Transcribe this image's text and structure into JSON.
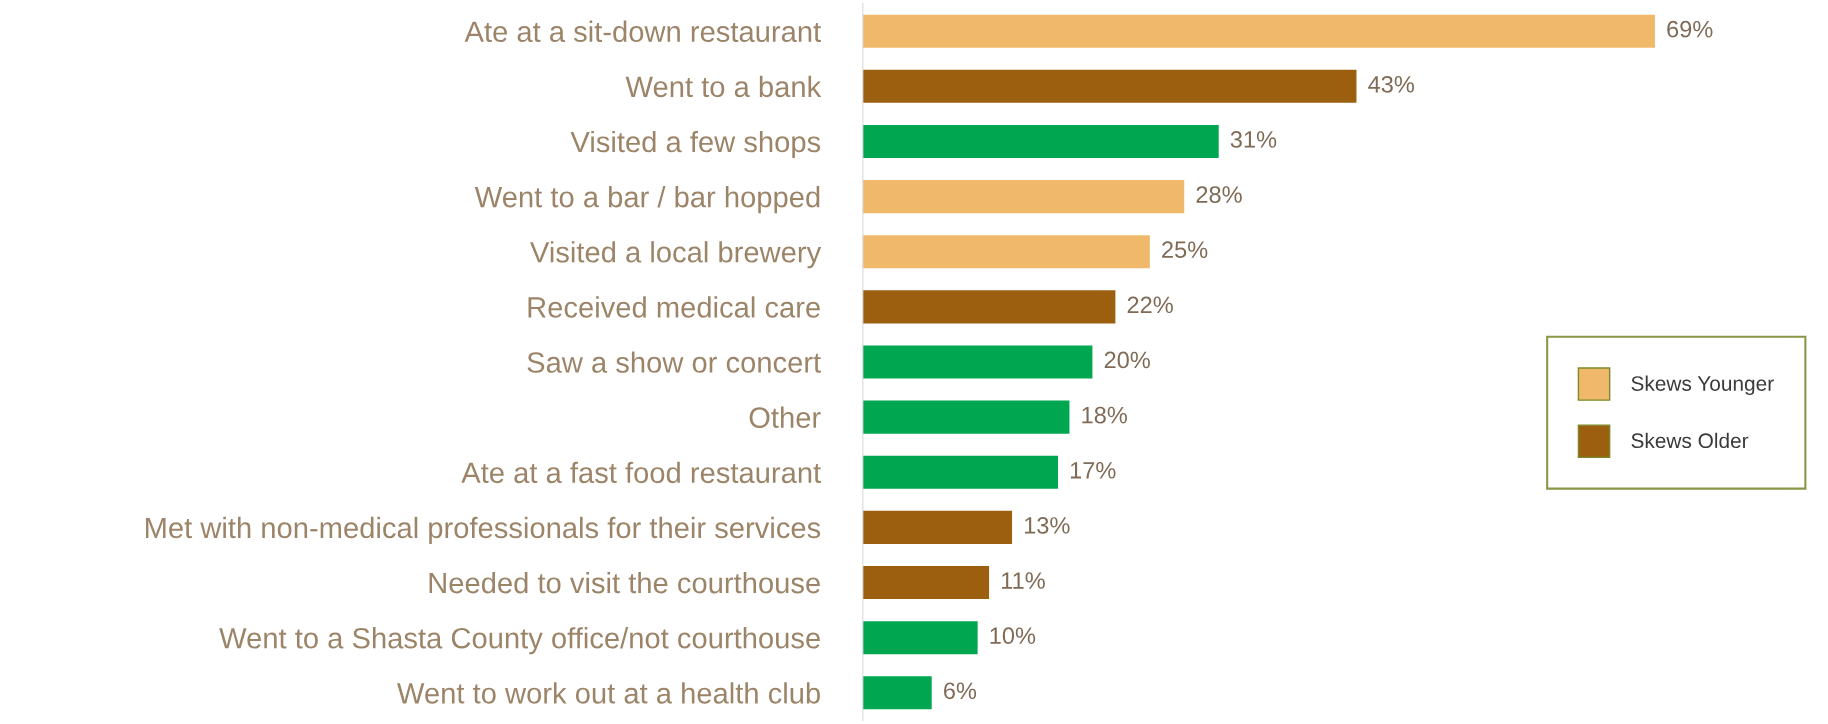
{
  "chart_data": {
    "type": "bar",
    "orientation": "horizontal",
    "categories": [
      "Ate at a sit-down restaurant",
      "Went to a bank",
      "Visited a few shops",
      "Went to a bar / bar hopped",
      "Visited a local brewery",
      "Received medical care",
      "Saw a show or concert",
      "Other",
      "Ate at a fast food restaurant",
      "Met with non-medical professionals for their services",
      "Needed to visit the courthouse",
      "Went to a Shasta County office/not courthouse",
      "Went to work out at a health club"
    ],
    "series": [
      {
        "name": "Skews Younger",
        "color": "#f0b86a",
        "values": [
          69,
          null,
          null,
          28,
          25,
          null,
          null,
          null,
          null,
          null,
          null,
          null,
          null
        ],
        "value_labels": [
          "69%",
          null,
          null,
          "28%",
          "25%",
          null,
          null,
          null,
          null,
          null,
          null,
          null,
          null
        ]
      },
      {
        "name": "Skews Older",
        "color": "#9c5f10",
        "values": [
          null,
          43,
          null,
          null,
          null,
          22,
          null,
          null,
          null,
          13,
          11,
          null,
          null
        ],
        "value_labels": [
          null,
          "43%",
          null,
          null,
          null,
          "22%",
          null,
          null,
          null,
          "13%",
          "11%",
          null,
          null
        ]
      },
      {
        "color": "#00a650",
        "values": [
          null,
          null,
          31,
          null,
          null,
          null,
          20,
          18,
          17,
          null,
          null,
          10,
          6
        ],
        "value_labels": [
          null,
          null,
          "31%",
          null,
          null,
          null,
          "20%",
          "18%",
          "17%",
          null,
          null,
          "10%",
          "6%"
        ]
      }
    ],
    "legend": "right",
    "grid": false
  }
}
